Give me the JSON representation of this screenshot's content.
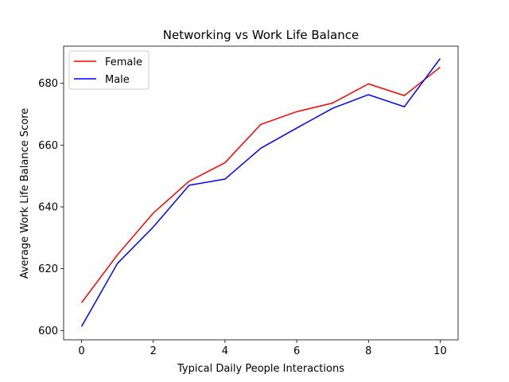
{
  "chart_data": {
    "type": "line",
    "title": "Networking vs Work Life Balance",
    "xlabel": "Typical Daily People Interactions",
    "ylabel": "Average Work Life Balance Score",
    "x": [
      0,
      1,
      2,
      3,
      4,
      5,
      6,
      7,
      8,
      9,
      10
    ],
    "xlim": [
      -0.5,
      10.5
    ],
    "ylim": [
      597,
      692
    ],
    "xticks": [
      0,
      2,
      4,
      6,
      8,
      10
    ],
    "yticks": [
      600,
      620,
      640,
      660,
      680
    ],
    "grid": false,
    "legend_position": "upper-left",
    "series": [
      {
        "name": "Female",
        "color": "#ff0000",
        "values": [
          609.0,
          624.5,
          638.0,
          648.3,
          654.3,
          666.7,
          670.8,
          673.6,
          679.8,
          676.0,
          685.2
        ]
      },
      {
        "name": "Male",
        "color": "#0000ff",
        "values": [
          601.3,
          621.7,
          633.5,
          647.0,
          649.0,
          659.0,
          665.5,
          671.9,
          676.3,
          672.4,
          688.0
        ]
      }
    ]
  }
}
